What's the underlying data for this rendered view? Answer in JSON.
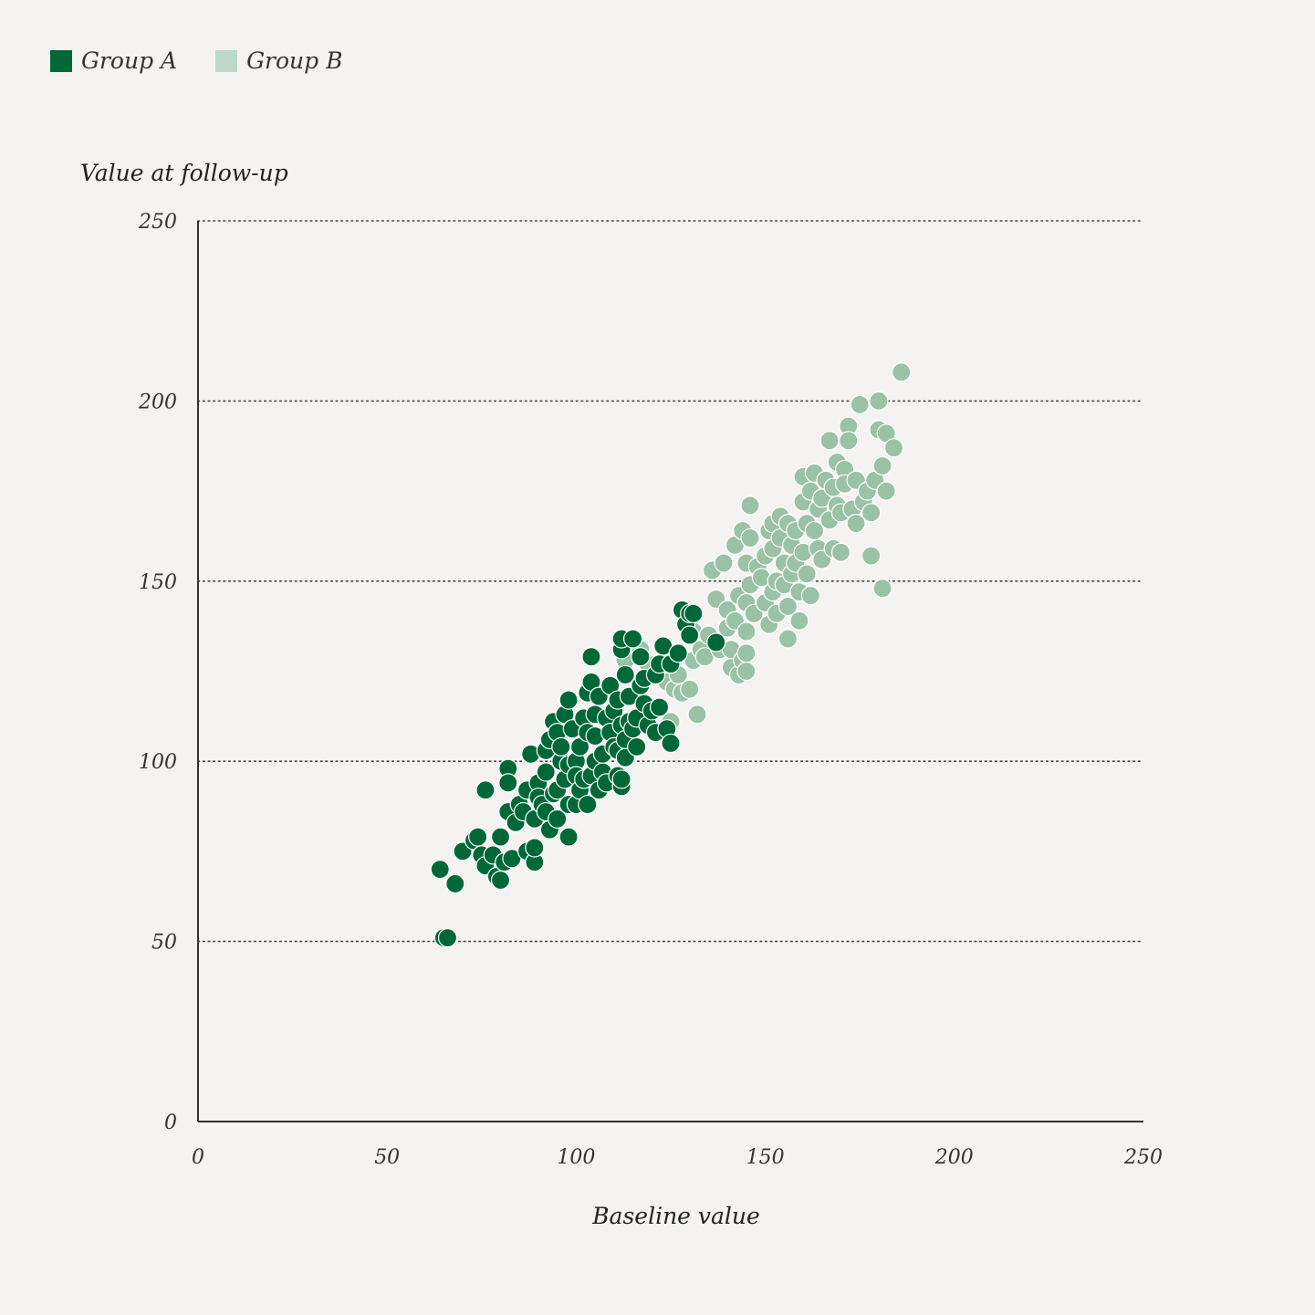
{
  "legend": {
    "items": [
      {
        "label": "Group A",
        "color": "#006837"
      },
      {
        "label": "Group B",
        "color": "#bcd8c8"
      }
    ]
  },
  "chart_data": {
    "type": "scatter",
    "title": "",
    "xlabel": "Baseline value",
    "ylabel": "Value at follow-up",
    "xlim": [
      0,
      250
    ],
    "ylim": [
      0,
      250
    ],
    "x_ticks": [
      0,
      50,
      100,
      150,
      200,
      250
    ],
    "y_ticks": [
      0,
      50,
      100,
      150,
      200,
      250
    ],
    "grid": "horizontal dotted",
    "legend_position": "top-left",
    "series": [
      {
        "name": "Group A",
        "color": "#006837",
        "points": [
          [
            64,
            70
          ],
          [
            65,
            51
          ],
          [
            66,
            51
          ],
          [
            68,
            66
          ],
          [
            70,
            75
          ],
          [
            73,
            78
          ],
          [
            74,
            79
          ],
          [
            75,
            74
          ],
          [
            76,
            71
          ],
          [
            76,
            92
          ],
          [
            78,
            74
          ],
          [
            79,
            68
          ],
          [
            80,
            79
          ],
          [
            80,
            67
          ],
          [
            81,
            72
          ],
          [
            82,
            86
          ],
          [
            82,
            98
          ],
          [
            82,
            94
          ],
          [
            83,
            73
          ],
          [
            84,
            83
          ],
          [
            85,
            88
          ],
          [
            86,
            86
          ],
          [
            87,
            75
          ],
          [
            87,
            92
          ],
          [
            88,
            102
          ],
          [
            89,
            72
          ],
          [
            89,
            84
          ],
          [
            89,
            76
          ],
          [
            90,
            94
          ],
          [
            90,
            90
          ],
          [
            91,
            88
          ],
          [
            92,
            86
          ],
          [
            92,
            97
          ],
          [
            92,
            103
          ],
          [
            93,
            106
          ],
          [
            93,
            81
          ],
          [
            94,
            91
          ],
          [
            94,
            111
          ],
          [
            95,
            92
          ],
          [
            95,
            84
          ],
          [
            95,
            108
          ],
          [
            96,
            100
          ],
          [
            96,
            104
          ],
          [
            97,
            95
          ],
          [
            97,
            113
          ],
          [
            98,
            88
          ],
          [
            98,
            99
          ],
          [
            98,
            79
          ],
          [
            98,
            117
          ],
          [
            99,
            109
          ],
          [
            100,
            100
          ],
          [
            100,
            96
          ],
          [
            100,
            88
          ],
          [
            101,
            104
          ],
          [
            101,
            92
          ],
          [
            102,
            112
          ],
          [
            102,
            95
          ],
          [
            103,
            119
          ],
          [
            103,
            108
          ],
          [
            103,
            88
          ],
          [
            104,
            122
          ],
          [
            104,
            96
          ],
          [
            104,
            129
          ],
          [
            105,
            107
          ],
          [
            105,
            100
          ],
          [
            105,
            113
          ],
          [
            106,
            118
          ],
          [
            106,
            92
          ],
          [
            107,
            97
          ],
          [
            107,
            102
          ],
          [
            108,
            112
          ],
          [
            108,
            94
          ],
          [
            109,
            121
          ],
          [
            109,
            108
          ],
          [
            110,
            114
          ],
          [
            110,
            104
          ],
          [
            111,
            103
          ],
          [
            111,
            96
          ],
          [
            111,
            117
          ],
          [
            112,
            93
          ],
          [
            112,
            110
          ],
          [
            112,
            95
          ],
          [
            112,
            131
          ],
          [
            112,
            134
          ],
          [
            113,
            106
          ],
          [
            113,
            124
          ],
          [
            113,
            101
          ],
          [
            114,
            111
          ],
          [
            114,
            118
          ],
          [
            115,
            134
          ],
          [
            115,
            109
          ],
          [
            116,
            104
          ],
          [
            116,
            112
          ],
          [
            117,
            121
          ],
          [
            117,
            129
          ],
          [
            118,
            123
          ],
          [
            118,
            116
          ],
          [
            119,
            110
          ],
          [
            120,
            114
          ],
          [
            121,
            108
          ],
          [
            121,
            124
          ],
          [
            122,
            115
          ],
          [
            122,
            127
          ],
          [
            123,
            132
          ],
          [
            124,
            109
          ],
          [
            125,
            105
          ],
          [
            125,
            127
          ],
          [
            127,
            130
          ],
          [
            128,
            142
          ],
          [
            129,
            138
          ],
          [
            130,
            141
          ],
          [
            130,
            135
          ],
          [
            131,
            141
          ],
          [
            137,
            133
          ]
        ]
      },
      {
        "name": "Group B",
        "color": "#9ac2a4",
        "points": [
          [
            113,
            128
          ],
          [
            117,
            131
          ],
          [
            119,
            127
          ],
          [
            124,
            122
          ],
          [
            125,
            111
          ],
          [
            126,
            120
          ],
          [
            127,
            124
          ],
          [
            128,
            119
          ],
          [
            130,
            120
          ],
          [
            131,
            128
          ],
          [
            131,
            136
          ],
          [
            132,
            113
          ],
          [
            133,
            131
          ],
          [
            134,
            129
          ],
          [
            135,
            135
          ],
          [
            136,
            153
          ],
          [
            137,
            145
          ],
          [
            138,
            131
          ],
          [
            139,
            155
          ],
          [
            140,
            137
          ],
          [
            140,
            142
          ],
          [
            141,
            126
          ],
          [
            141,
            131
          ],
          [
            142,
            139
          ],
          [
            142,
            160
          ],
          [
            143,
            124
          ],
          [
            143,
            146
          ],
          [
            144,
            164
          ],
          [
            144,
            128
          ],
          [
            145,
            144
          ],
          [
            145,
            155
          ],
          [
            145,
            136
          ],
          [
            145,
            130
          ],
          [
            145,
            125
          ],
          [
            146,
            171
          ],
          [
            146,
            149
          ],
          [
            146,
            162
          ],
          [
            147,
            141
          ],
          [
            148,
            154
          ],
          [
            149,
            151
          ],
          [
            150,
            157
          ],
          [
            150,
            144
          ],
          [
            151,
            164
          ],
          [
            151,
            138
          ],
          [
            152,
            147
          ],
          [
            152,
            166
          ],
          [
            152,
            159
          ],
          [
            153,
            150
          ],
          [
            153,
            141
          ],
          [
            154,
            168
          ],
          [
            154,
            162
          ],
          [
            155,
            155
          ],
          [
            155,
            149
          ],
          [
            156,
            166
          ],
          [
            156,
            143
          ],
          [
            156,
            134
          ],
          [
            157,
            160
          ],
          [
            157,
            152
          ],
          [
            158,
            164
          ],
          [
            158,
            155
          ],
          [
            159,
            147
          ],
          [
            159,
            139
          ],
          [
            160,
            172
          ],
          [
            160,
            158
          ],
          [
            160,
            179
          ],
          [
            161,
            166
          ],
          [
            161,
            152
          ],
          [
            162,
            175
          ],
          [
            162,
            146
          ],
          [
            163,
            180
          ],
          [
            163,
            164
          ],
          [
            164,
            170
          ],
          [
            164,
            159
          ],
          [
            165,
            156
          ],
          [
            165,
            173
          ],
          [
            166,
            178
          ],
          [
            167,
            189
          ],
          [
            167,
            167
          ],
          [
            168,
            176
          ],
          [
            168,
            159
          ],
          [
            169,
            183
          ],
          [
            169,
            171
          ],
          [
            170,
            169
          ],
          [
            170,
            158
          ],
          [
            171,
            181
          ],
          [
            171,
            177
          ],
          [
            172,
            193
          ],
          [
            172,
            189
          ],
          [
            173,
            170
          ],
          [
            174,
            178
          ],
          [
            174,
            166
          ],
          [
            175,
            199
          ],
          [
            176,
            172
          ],
          [
            177,
            175
          ],
          [
            178,
            169
          ],
          [
            178,
            157
          ],
          [
            179,
            178
          ],
          [
            180,
            192
          ],
          [
            180,
            200
          ],
          [
            181,
            182
          ],
          [
            181,
            148
          ],
          [
            182,
            191
          ],
          [
            182,
            175
          ],
          [
            184,
            187
          ],
          [
            186,
            208
          ]
        ]
      }
    ]
  }
}
